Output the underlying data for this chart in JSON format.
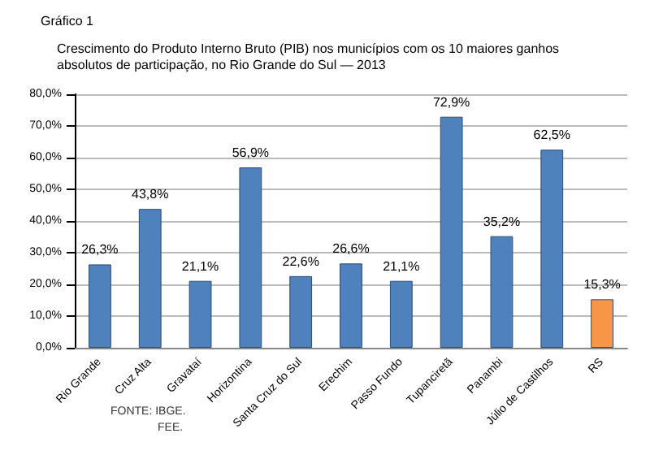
{
  "chart_data": {
    "type": "bar",
    "title": "Gráfico 1",
    "subtitle": "Crescimento do Produto Interno Bruto (PIB) nos municípios com os 10 maiores ganhos absolutos de participação, no Rio Grande do Sul — 2013",
    "categories": [
      "Rio Grande",
      "Cruz Alta",
      "Gravataí",
      "Horizontina",
      "Santa Cruz do Sul",
      "Erechim",
      "Passo Fundo",
      "Tupanciretã",
      "Panambi",
      "Júlio de Castilhos",
      "RS"
    ],
    "values": [
      26.3,
      43.8,
      21.1,
      56.9,
      22.6,
      26.6,
      21.1,
      72.9,
      35.2,
      62.5,
      15.3
    ],
    "colors": [
      "#4f81bd",
      "#4f81bd",
      "#4f81bd",
      "#4f81bd",
      "#4f81bd",
      "#4f81bd",
      "#4f81bd",
      "#4f81bd",
      "#4f81bd",
      "#4f81bd",
      "#f79646"
    ],
    "value_labels": [
      "26,3%",
      "43,8%",
      "21,1%",
      "56,9%",
      "22,6%",
      "26,6%",
      "21,1%",
      "72,9%",
      "35,2%",
      "62,5%",
      "15,3%"
    ],
    "ylim": [
      0,
      80
    ],
    "yticks": [
      {
        "value": 0,
        "label": "0,0%"
      },
      {
        "value": 10,
        "label": "10,0%"
      },
      {
        "value": 20,
        "label": "20,0%"
      },
      {
        "value": 30,
        "label": "30,0%"
      },
      {
        "value": 40,
        "label": "40,0%"
      },
      {
        "value": 50,
        "label": "50,0%"
      },
      {
        "value": 60,
        "label": "60,0%"
      },
      {
        "value": 70,
        "label": "70,0%"
      },
      {
        "value": 80,
        "label": "80,0%"
      }
    ],
    "grid": "y",
    "annotations": [
      "FONTE: IBGE.",
      "FEE."
    ]
  }
}
